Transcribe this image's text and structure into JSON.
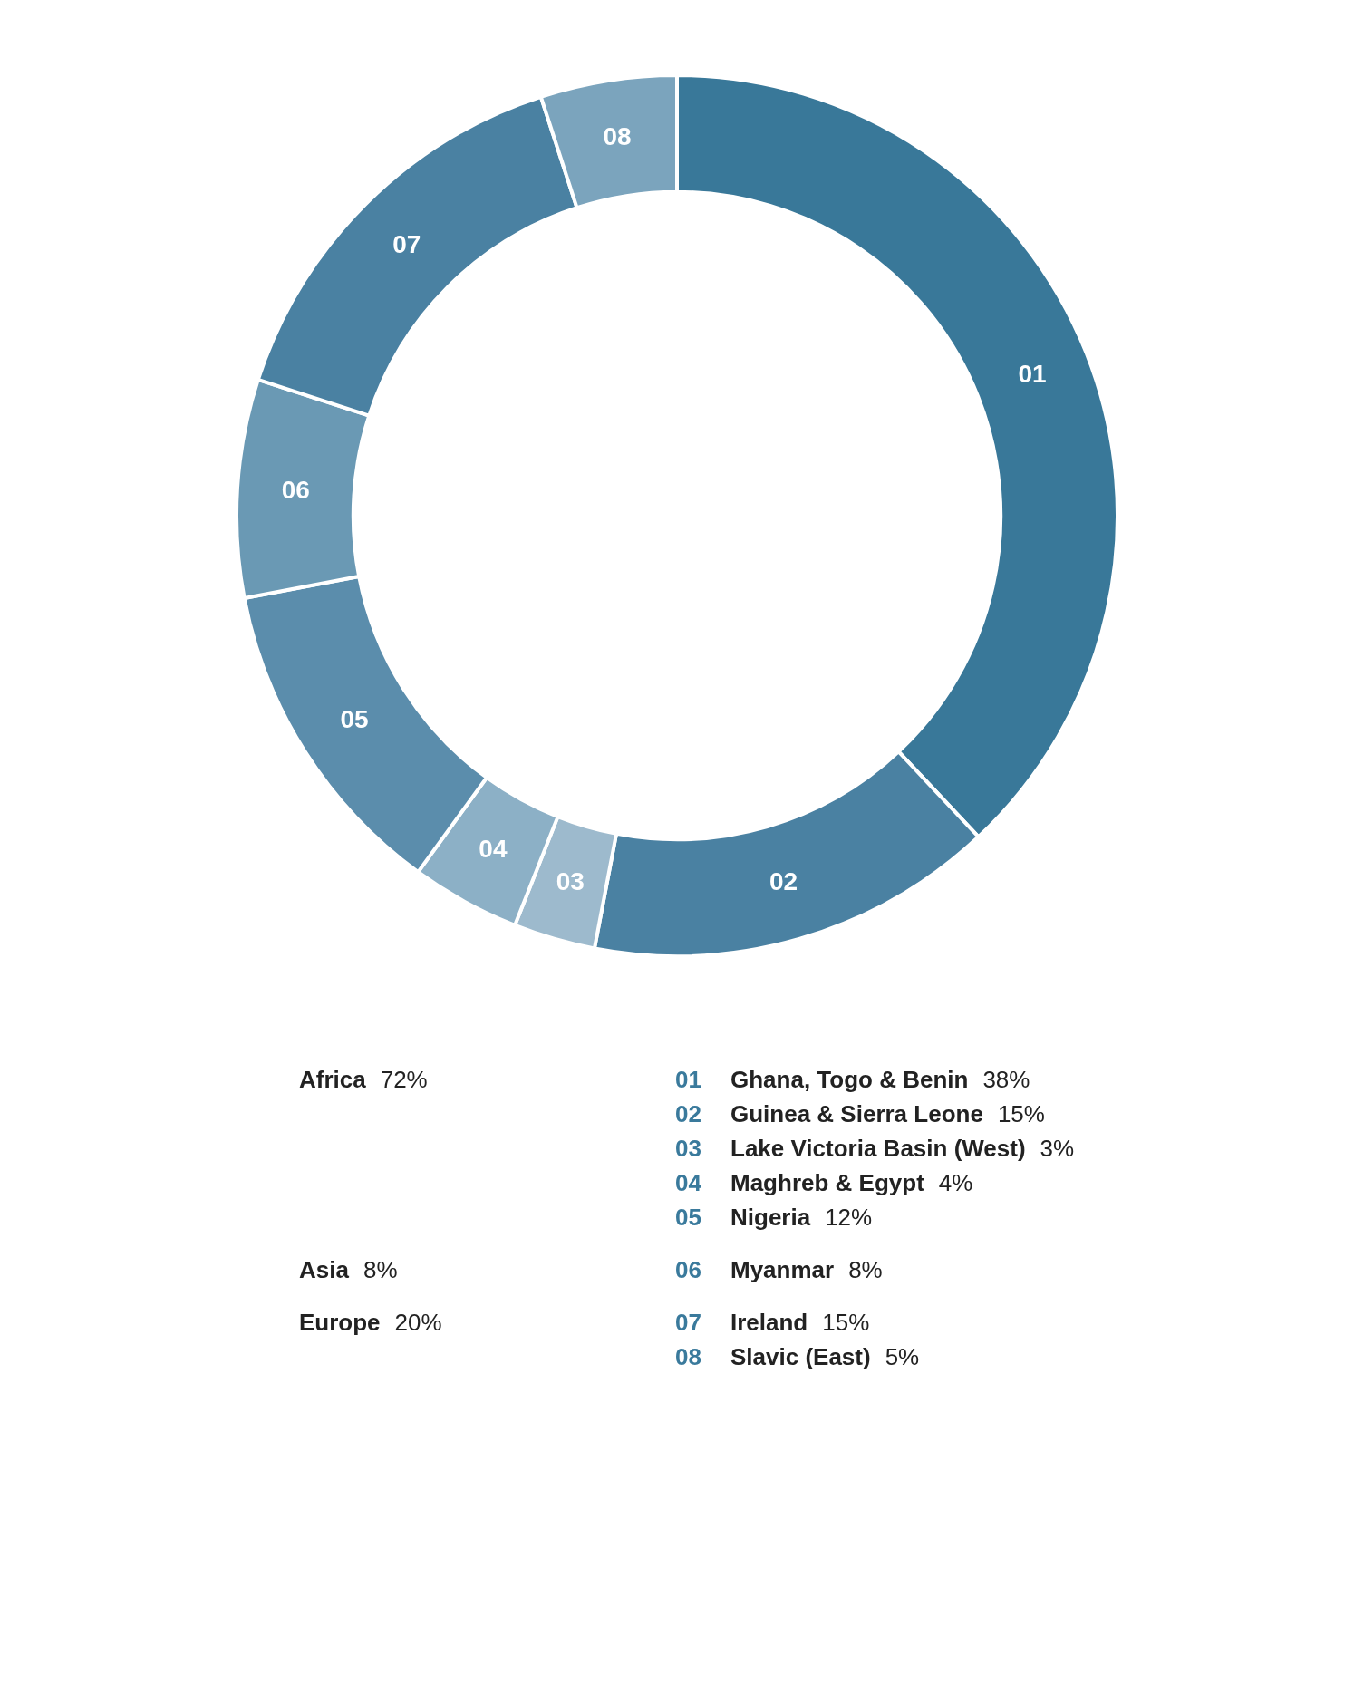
{
  "chart_data": {
    "type": "donut",
    "categories": [
      "01",
      "02",
      "03",
      "04",
      "05",
      "06",
      "07",
      "08"
    ],
    "values": [
      38,
      15,
      3,
      4,
      12,
      8,
      15,
      5
    ],
    "colors": [
      "#397899",
      "#4a81a2",
      "#9dbacd",
      "#8cb0c6",
      "#5b8dac",
      "#6a99b4",
      "#4a81a2",
      "#7ba4bd"
    ],
    "annotations": [
      {
        "text": "Ghana, Togo & Benin 38%",
        "x": "01"
      },
      {
        "text": "Guinea & Sierra Leone 15%",
        "x": "02"
      },
      {
        "text": "Lake Victoria Basin (West) 3%",
        "x": "03"
      },
      {
        "text": "Maghreb & Egypt 4%",
        "x": "04"
      },
      {
        "text": "Nigeria 12%",
        "x": "05"
      },
      {
        "text": "Myanmar 8%",
        "x": "06"
      },
      {
        "text": "Ireland 15%",
        "x": "07"
      },
      {
        "text": "Slavic (East) 5%",
        "x": "08"
      },
      "Africa 72%",
      "Asia 8%",
      "Europe 20%"
    ]
  }
}
